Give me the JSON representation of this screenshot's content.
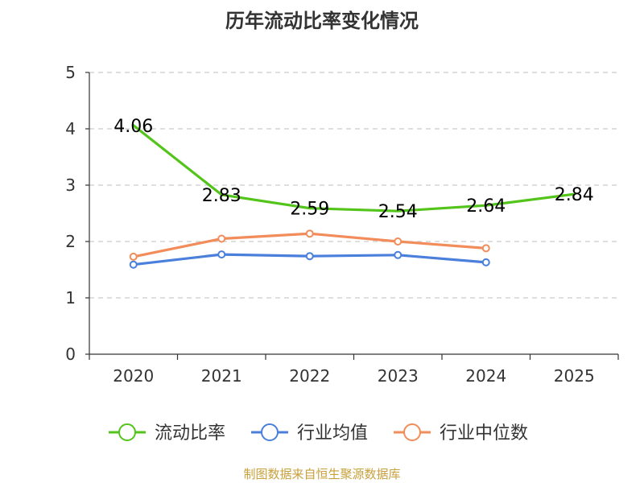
{
  "chart_data": {
    "type": "line",
    "title": "历年流动比率变化情况",
    "categories": [
      "2020",
      "2021",
      "2022",
      "2023",
      "2024",
      "2025"
    ],
    "ylim": [
      0,
      5
    ],
    "yticks": [
      0,
      1,
      2,
      3,
      4,
      5
    ],
    "grid": true,
    "legend_position": "bottom",
    "series": [
      {
        "name": "流动比率",
        "color": "#52c41a",
        "values": [
          4.06,
          2.83,
          2.59,
          2.54,
          2.64,
          2.84
        ],
        "labels": [
          "4.06",
          "2.83",
          "2.59",
          "2.54",
          "2.64",
          "2.84"
        ],
        "show_labels": true
      },
      {
        "name": "行业均值",
        "color": "#4a7fdc",
        "values": [
          1.59,
          1.77,
          1.74,
          1.76,
          1.63,
          null
        ],
        "show_labels": false
      },
      {
        "name": "行业中位数",
        "color": "#f28c5a",
        "values": [
          1.73,
          2.05,
          2.14,
          2.0,
          1.88,
          null
        ],
        "show_labels": false
      }
    ],
    "source": "制图数据来自恒生聚源数据库"
  }
}
